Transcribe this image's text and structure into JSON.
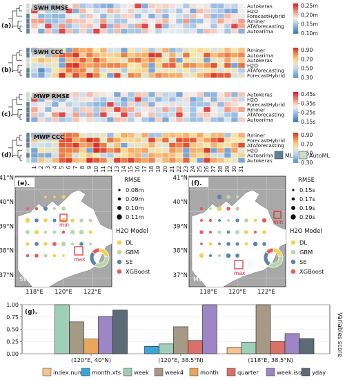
{
  "heatmaps": {
    "days": [
      "1",
      "2",
      "3",
      "4",
      "5",
      "6",
      "7",
      "8",
      "9",
      "10",
      "11",
      "12",
      "13",
      "14",
      "15",
      "16",
      "17",
      "18",
      "19",
      "20",
      "21",
      "22",
      "23",
      "24",
      "25",
      "26",
      "27",
      "28",
      "29",
      "30",
      "31"
    ],
    "group_legend": {
      "ml": {
        "label": "ML",
        "color": "#5f7f99"
      },
      "automl": {
        "label": "AutoML",
        "color": "#c9dec9"
      }
    },
    "panels": [
      {
        "tag": "(a).",
        "title": "SWH RMSE",
        "kind": "rmse",
        "models": [
          "Autokeras",
          "H2O",
          "ForecastHybrid",
          "Rminer",
          "ATAforecasting",
          "Autoarima"
        ],
        "groups": [
          "automl",
          "automl",
          "ml",
          "ml",
          "ml",
          "ml"
        ],
        "colorbar": [
          "0.25m",
          "0.20m",
          "0.15m",
          "0.10m"
        ],
        "vmin": 0.08,
        "vmax": 0.26,
        "seed": 11
      },
      {
        "tag": "(b).",
        "title": "SWH CCC",
        "kind": "ccc",
        "models": [
          "Rminer",
          "Autoarima",
          "Autokeras",
          "H2O",
          "ATAforecasting",
          "ForecastHybrid"
        ],
        "groups": [
          "ml",
          "ml",
          "automl",
          "automl",
          "ml",
          "ml"
        ],
        "colorbar": [
          "0.90",
          "0.70",
          "0.50",
          "0.30"
        ],
        "vmin": 0.25,
        "vmax": 0.95,
        "seed": 23
      },
      {
        "tag": "(c).",
        "title": "MWP RMSE",
        "kind": "rmse",
        "models": [
          "Autokeras",
          "H2O",
          "ForecastHybrid",
          "Rminer",
          "ATAforecasting",
          "Autoarima"
        ],
        "groups": [
          "automl",
          "automl",
          "ml",
          "ml",
          "ml",
          "ml"
        ],
        "colorbar": [
          "0.45s",
          "0.35s",
          "0.25s",
          "0.15s"
        ],
        "vmin": 0.12,
        "vmax": 0.48,
        "seed": 37
      },
      {
        "tag": "(d).",
        "title": "MWP CCC",
        "kind": "ccc",
        "models": [
          "Rminer",
          "ForecastHybrid",
          "ATAforecasting",
          "H2O",
          "Autoarima",
          "Autokeras"
        ],
        "groups": [
          "ml",
          "ml",
          "ml",
          "automl",
          "ml",
          "automl"
        ],
        "colorbar": [
          "0.90",
          "0.70",
          "0.50",
          "0.30"
        ],
        "vmin": 0.25,
        "vmax": 0.95,
        "seed": 51
      }
    ]
  },
  "maps": [
    {
      "tag": "(e).",
      "label": "SWH",
      "rmse_title": "RMSE",
      "sizes": [
        "0.08m",
        "0.09m",
        "0.10m",
        "0.11m"
      ],
      "model_title": "H2O Model",
      "models": [
        "DL",
        "GBM",
        "SE",
        "XGBoost"
      ],
      "min_label": "min",
      "max_label": "max",
      "lat_labels": [
        "41°N",
        "40°N",
        "39°N",
        "38°N",
        "37°N"
      ],
      "lon_labels": [
        "118°E",
        "120°E",
        "122°E"
      ]
    },
    {
      "tag": "(f).",
      "label": "MWP",
      "rmse_title": "RMSE",
      "sizes": [
        "0.15s",
        "0.17s",
        "0.19s",
        "0.20s"
      ],
      "model_title": "H2O Model",
      "models": [
        "DL",
        "GBM",
        "SE",
        "XGBoost"
      ],
      "min_label": "min",
      "max_label": "max",
      "lat_labels": [
        "41°N",
        "40°N",
        "39°N",
        "38°N",
        "37°N"
      ],
      "lon_labels": [
        "118°E",
        "120°E",
        "122°E"
      ]
    }
  ],
  "model_colors": {
    "DL": "#f2d15a",
    "GBM": "#b7d7a8",
    "SE": "#5b86a8",
    "XGBoost": "#ea5b5b"
  },
  "chart_data": {
    "type": "bar",
    "tag": "(g).",
    "categories": [
      "(120°E, 40°N)",
      "(120°E, 38.5°N)",
      "(118°E, 38.5°N)"
    ],
    "ylabel": "Variables score",
    "ylim": [
      0,
      1.0
    ],
    "yticks": [
      "0.00",
      "0.25",
      "0.50",
      "0.75",
      "1.00"
    ],
    "series": [
      {
        "name": "index.num",
        "color": "#f4c48f",
        "values": [
          null,
          null,
          0.13
        ]
      },
      {
        "name": "month.xts",
        "color": "#3aa6d6",
        "values": [
          null,
          0.15,
          null
        ]
      },
      {
        "name": "week",
        "color": "#9fcfb8",
        "values": [
          1.0,
          0.2,
          0.23
        ]
      },
      {
        "name": "week4",
        "color": "#a69a86",
        "values": [
          0.65,
          0.55,
          1.0
        ]
      },
      {
        "name": "month",
        "color": "#e8a65a",
        "values": [
          0.3,
          null,
          null
        ]
      },
      {
        "name": "quarter",
        "color": "#d9706a",
        "values": [
          null,
          0.27,
          0.25
        ]
      },
      {
        "name": "week.iso",
        "color": "#9d86c4",
        "values": [
          0.76,
          1.0,
          0.41
        ]
      },
      {
        "name": "yday",
        "color": "#5b6b78",
        "values": [
          0.89,
          null,
          0.31
        ]
      }
    ]
  }
}
